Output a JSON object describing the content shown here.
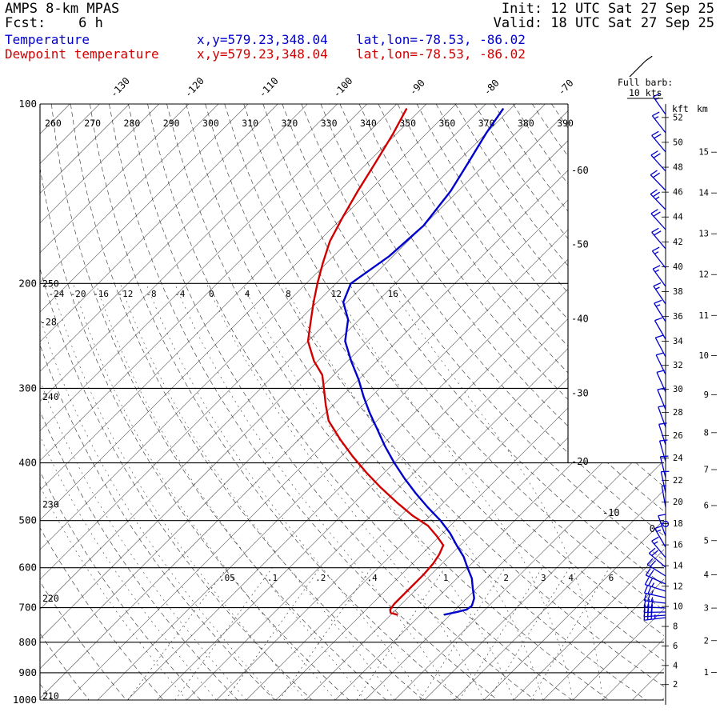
{
  "header": {
    "model": "AMPS 8-km MPAS",
    "fcst": "Fcst:    6 h",
    "init": "Init: 12 UTC Sat 27 Sep 25",
    "valid": "Valid: 18 UTC Sat 27 Sep 25"
  },
  "legend": {
    "temperature": {
      "label": "Temperature",
      "xy": "x,y=579.23,348.04",
      "latlon": "lat,lon=-78.53, -86.02",
      "color": "#0000cd"
    },
    "dewpoint": {
      "label": "Dewpoint temperature",
      "xy": "x,y=579.23,348.04",
      "latlon": "lat,lon=-78.53, -86.02",
      "color": "#d10000"
    }
  },
  "chart_data": {
    "type": "skewt-log-p",
    "pressure_levels_hpa": [
      100,
      200,
      300,
      400,
      500,
      600,
      700,
      800,
      900,
      1000
    ],
    "isotherm_step_c": 4,
    "top_isotherm_labels_c": [
      -130,
      -120,
      -110,
      -100,
      -90,
      -80,
      -70
    ],
    "right_isotherm_labels_c": [
      -60,
      -50,
      -40,
      -30,
      -20,
      -10,
      0
    ],
    "left_isotherm_label": {
      "c": -28,
      "p": 232
    },
    "dry_adiabat_labels_top_k": [
      260,
      270,
      280,
      290,
      300,
      310,
      320,
      330,
      340,
      350,
      360,
      370,
      380,
      390
    ],
    "dry_adiabat_labels_left": [
      {
        "k": 250,
        "p": 200
      },
      {
        "k": 240,
        "p": 310
      },
      {
        "k": 230,
        "p": 470
      },
      {
        "k": 220,
        "p": 675
      },
      {
        "k": 210,
        "p": 985
      }
    ],
    "moist_adiabat_labels_c": [
      -24,
      -20,
      -16,
      -12,
      -8,
      -4,
      0,
      4,
      8,
      12,
      16
    ],
    "mixing_ratio_labels_gkg": [
      0.05,
      0.1,
      0.2,
      0.4,
      1,
      2,
      3,
      4,
      6
    ],
    "height_axis": {
      "kft_label": "kft",
      "km_label": "km",
      "kft_step": 2,
      "kft_max": 52,
      "km_max": 15
    },
    "wind_legend": {
      "line1": "Full barb:",
      "line2": "10 kts"
    },
    "wind_color": "#0000cd",
    "series": [
      {
        "name": "Temperature",
        "color": "#0000cd",
        "points_p_t": [
          [
            102,
            -77
          ],
          [
            112,
            -76
          ],
          [
            125,
            -74.5
          ],
          [
            140,
            -73
          ],
          [
            160,
            -72
          ],
          [
            180,
            -72.5
          ],
          [
            200,
            -74
          ],
          [
            215,
            -72.5
          ],
          [
            230,
            -69.5
          ],
          [
            250,
            -67
          ],
          [
            270,
            -63.5
          ],
          [
            290,
            -60
          ],
          [
            310,
            -57
          ],
          [
            330,
            -54
          ],
          [
            350,
            -51
          ],
          [
            375,
            -47.5
          ],
          [
            400,
            -44
          ],
          [
            425,
            -40.5
          ],
          [
            450,
            -37
          ],
          [
            475,
            -33.5
          ],
          [
            500,
            -30
          ],
          [
            525,
            -27
          ],
          [
            550,
            -24.5
          ],
          [
            575,
            -22
          ],
          [
            600,
            -20
          ],
          [
            625,
            -18
          ],
          [
            650,
            -16.5
          ],
          [
            675,
            -15
          ],
          [
            695,
            -14.3
          ],
          [
            705,
            -14.5
          ],
          [
            712,
            -15.5
          ],
          [
            719,
            -16.8
          ]
        ]
      },
      {
        "name": "Dewpoint temperature",
        "color": "#d10000",
        "points_p_t": [
          [
            102,
            -90
          ],
          [
            112,
            -88.5
          ],
          [
            125,
            -87
          ],
          [
            140,
            -85.5
          ],
          [
            155,
            -84
          ],
          [
            170,
            -82.5
          ],
          [
            185,
            -80.5
          ],
          [
            200,
            -78.5
          ],
          [
            215,
            -76.5
          ],
          [
            230,
            -74.5
          ],
          [
            250,
            -72
          ],
          [
            270,
            -68.5
          ],
          [
            285,
            -65.5
          ],
          [
            300,
            -63.5
          ],
          [
            320,
            -61
          ],
          [
            340,
            -58.5
          ],
          [
            365,
            -54.5
          ],
          [
            390,
            -50.5
          ],
          [
            415,
            -46.5
          ],
          [
            440,
            -42.5
          ],
          [
            465,
            -38.5
          ],
          [
            490,
            -34.5
          ],
          [
            510,
            -31
          ],
          [
            530,
            -28.5
          ],
          [
            550,
            -26.3
          ],
          [
            570,
            -25.6
          ],
          [
            590,
            -25.2
          ],
          [
            615,
            -25
          ],
          [
            640,
            -25
          ],
          [
            665,
            -25
          ],
          [
            690,
            -25
          ],
          [
            705,
            -24.8
          ],
          [
            714,
            -24.3
          ],
          [
            719,
            -23.2
          ]
        ]
      }
    ],
    "wind_barbs": [
      [
        143,
        -35,
        15
      ],
      [
        166,
        -38,
        15
      ],
      [
        190,
        -40,
        20
      ],
      [
        214,
        -42,
        20
      ],
      [
        238,
        -44,
        20
      ],
      [
        262,
        -44,
        25
      ],
      [
        287,
        -42,
        20
      ],
      [
        311,
        -40,
        20
      ],
      [
        335,
        -38,
        15
      ],
      [
        358,
        -36,
        15
      ],
      [
        380,
        -34,
        15
      ],
      [
        402,
        -32,
        15
      ],
      [
        424,
        -30,
        10
      ],
      [
        446,
        -28,
        10
      ],
      [
        468,
        -26,
        10
      ],
      [
        490,
        -24,
        10
      ],
      [
        512,
        -22,
        10
      ],
      [
        534,
        -20,
        10
      ],
      [
        556,
        -18,
        10
      ],
      [
        577,
        -16,
        10
      ],
      [
        597,
        -14,
        10
      ],
      [
        616,
        -12,
        10
      ],
      [
        634,
        -10,
        5
      ],
      [
        655,
        0,
        0
      ],
      [
        670,
        -20,
        10
      ],
      [
        684,
        -30,
        15
      ],
      [
        697,
        -40,
        15
      ],
      [
        709,
        -50,
        20
      ],
      [
        720,
        -58,
        20
      ],
      [
        730,
        -66,
        20
      ],
      [
        739,
        -72,
        25
      ],
      [
        747,
        -78,
        25
      ],
      [
        754,
        -83,
        25
      ],
      [
        760,
        -87,
        30
      ],
      [
        765,
        -91,
        30
      ],
      [
        769,
        -94,
        30
      ],
      [
        772,
        -97,
        35
      ]
    ]
  }
}
